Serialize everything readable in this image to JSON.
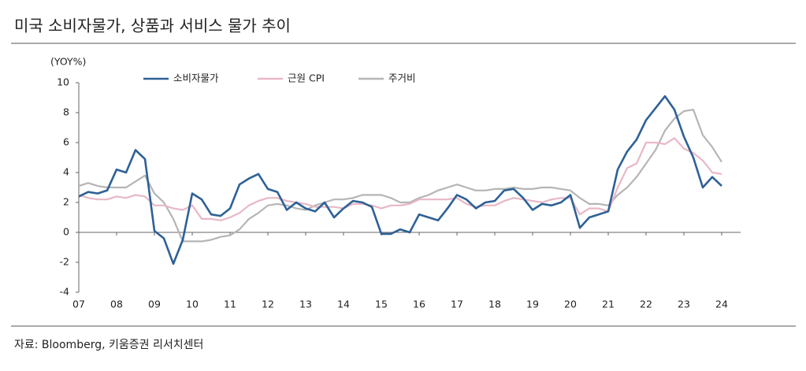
{
  "chart_data": {
    "type": "line",
    "title": "미국 소비자물가, 상품과 서비스 물가 추이",
    "y_label": "(YOY%)",
    "source": "자료: Bloomberg, 키움증권 리서치센터",
    "x": [
      2007,
      2007.25,
      2007.5,
      2007.75,
      2008,
      2008.25,
      2008.5,
      2008.75,
      2009,
      2009.25,
      2009.5,
      2009.75,
      2010,
      2010.25,
      2010.5,
      2010.75,
      2011,
      2011.25,
      2011.5,
      2011.75,
      2012,
      2012.25,
      2012.5,
      2012.75,
      2013,
      2013.25,
      2013.5,
      2013.75,
      2014,
      2014.25,
      2014.5,
      2014.75,
      2015,
      2015.25,
      2015.5,
      2015.75,
      2016,
      2016.25,
      2016.5,
      2016.75,
      2017,
      2017.25,
      2017.5,
      2017.75,
      2018,
      2018.25,
      2018.5,
      2018.75,
      2019,
      2019.25,
      2019.5,
      2019.75,
      2020,
      2020.25,
      2020.5,
      2020.75,
      2021,
      2021.25,
      2021.5,
      2021.75,
      2022,
      2022.25,
      2022.5,
      2022.75,
      2023,
      2023.25,
      2023.5,
      2023.75,
      2024
    ],
    "xlim": [
      2007,
      2024.5
    ],
    "xticks": [
      {
        "value": 2007,
        "label": "07"
      },
      {
        "value": 2008,
        "label": "08"
      },
      {
        "value": 2009,
        "label": "09"
      },
      {
        "value": 2010,
        "label": "10"
      },
      {
        "value": 2011,
        "label": "11"
      },
      {
        "value": 2012,
        "label": "12"
      },
      {
        "value": 2013,
        "label": "13"
      },
      {
        "value": 2014,
        "label": "14"
      },
      {
        "value": 2015,
        "label": "15"
      },
      {
        "value": 2016,
        "label": "16"
      },
      {
        "value": 2017,
        "label": "17"
      },
      {
        "value": 2018,
        "label": "18"
      },
      {
        "value": 2019,
        "label": "19"
      },
      {
        "value": 2020,
        "label": "20"
      },
      {
        "value": 2021,
        "label": "21"
      },
      {
        "value": 2022,
        "label": "22"
      },
      {
        "value": 2023,
        "label": "23"
      },
      {
        "value": 2024,
        "label": "24"
      }
    ],
    "ylim": [
      -4,
      10
    ],
    "yticks": [
      -4,
      -2,
      0,
      2,
      4,
      6,
      8,
      10
    ],
    "series": [
      {
        "name": "소비자물가",
        "color": "#2e6196",
        "values": [
          2.4,
          2.7,
          2.6,
          2.8,
          4.2,
          4.0,
          5.5,
          4.9,
          0.1,
          -0.4,
          -2.1,
          -0.5,
          2.6,
          2.2,
          1.2,
          1.1,
          1.6,
          3.2,
          3.6,
          3.9,
          2.9,
          2.7,
          1.5,
          2.0,
          1.6,
          1.4,
          2.0,
          1.0,
          1.6,
          2.1,
          2.0,
          1.7,
          -0.1,
          -0.1,
          0.2,
          0.0,
          1.2,
          1.0,
          0.8,
          1.6,
          2.5,
          2.2,
          1.6,
          2.0,
          2.1,
          2.8,
          2.9,
          2.3,
          1.5,
          1.9,
          1.8,
          2.0,
          2.5,
          0.3,
          1.0,
          1.2,
          1.4,
          4.2,
          5.4,
          6.2,
          7.5,
          8.3,
          9.1,
          8.2,
          6.4,
          5.0,
          3.0,
          3.7,
          3.1
        ]
      },
      {
        "name": "근원 CPI",
        "color": "#e8b7c6",
        "values": [
          2.5,
          2.3,
          2.2,
          2.2,
          2.4,
          2.3,
          2.5,
          2.4,
          1.8,
          1.8,
          1.6,
          1.5,
          1.8,
          0.9,
          0.9,
          0.8,
          1.0,
          1.3,
          1.8,
          2.1,
          2.3,
          2.3,
          2.1,
          2.0,
          1.9,
          1.7,
          1.7,
          1.7,
          1.6,
          1.9,
          1.9,
          1.8,
          1.6,
          1.8,
          1.8,
          1.9,
          2.2,
          2.2,
          2.2,
          2.2,
          2.3,
          1.9,
          1.7,
          1.8,
          1.8,
          2.1,
          2.3,
          2.2,
          2.1,
          2.0,
          2.2,
          2.3,
          2.3,
          1.2,
          1.6,
          1.6,
          1.4,
          3.0,
          4.3,
          4.6,
          6.0,
          6.0,
          5.9,
          6.3,
          5.6,
          5.3,
          4.8,
          4.0,
          3.9
        ]
      },
      {
        "name": "주거비",
        "color": "#b5b5b5",
        "values": [
          3.1,
          3.3,
          3.1,
          3.0,
          3.0,
          3.0,
          3.4,
          3.8,
          2.6,
          2.0,
          0.9,
          -0.6,
          -0.6,
          -0.6,
          -0.5,
          -0.3,
          -0.2,
          0.2,
          0.9,
          1.3,
          1.8,
          1.9,
          1.8,
          1.6,
          1.5,
          1.8,
          2.0,
          2.2,
          2.2,
          2.3,
          2.5,
          2.5,
          2.5,
          2.3,
          2.0,
          2.0,
          2.3,
          2.5,
          2.8,
          3.0,
          3.2,
          3.0,
          2.8,
          2.8,
          2.9,
          2.9,
          3.0,
          2.9,
          2.9,
          3.0,
          3.0,
          2.9,
          2.8,
          2.3,
          1.9,
          1.9,
          1.8,
          2.5,
          3.0,
          3.7,
          4.6,
          5.5,
          6.8,
          7.6,
          8.1,
          8.2,
          6.5,
          5.7,
          4.7
        ]
      }
    ]
  }
}
